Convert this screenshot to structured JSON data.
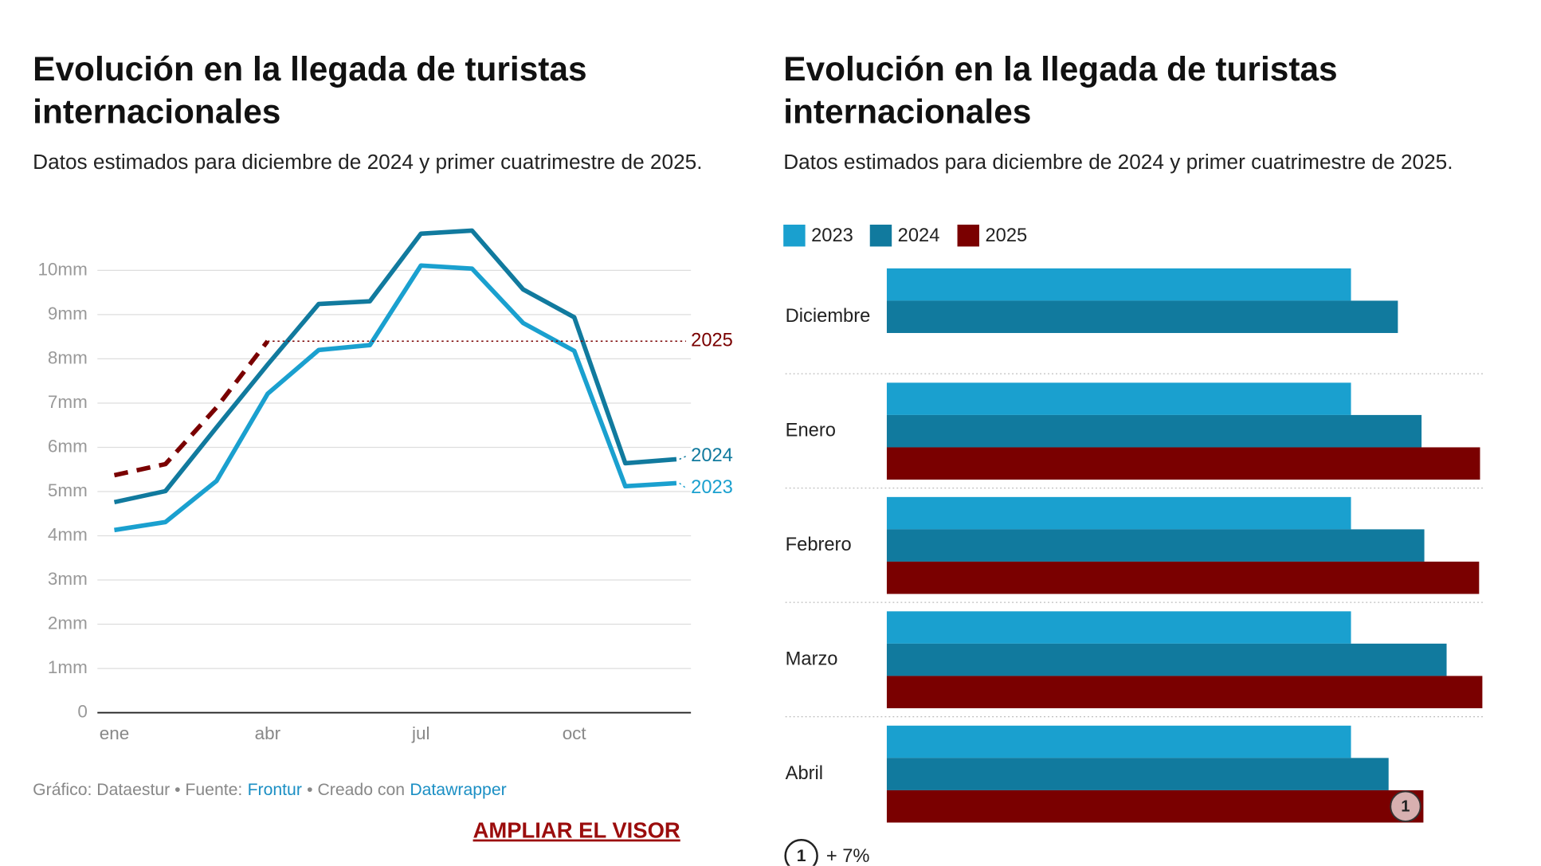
{
  "charts": [
    {
      "type": "line",
      "title": "Evolución en la llegada de turistas internacionales",
      "subtitle": "Datos estimados para diciembre de 2024 y primer cuatrimestre de 2025.",
      "categories": [
        "ene",
        null,
        null,
        "abr",
        null,
        null,
        "jul",
        null,
        null,
        "oct",
        null,
        null
      ],
      "series": [
        {
          "name": "2023",
          "color": "#1aa0cf",
          "values": [
            4.13,
            4.31,
            5.24,
            7.21,
            8.2,
            8.31,
            10.11,
            10.04,
            8.81,
            8.18,
            5.12,
            5.19
          ]
        },
        {
          "name": "2024",
          "color": "#117a9e",
          "values": [
            4.76,
            5.01,
            6.45,
            7.87,
            9.24,
            9.3,
            10.83,
            10.9,
            9.57,
            8.94,
            5.64,
            5.73
          ]
        },
        {
          "name": "2025",
          "color": "#7a0000",
          "dashed": true,
          "values": [
            5.37,
            5.62,
            6.9,
            8.4,
            null,
            null,
            null,
            null,
            null,
            null,
            null,
            null
          ]
        }
      ],
      "ylim": [
        0,
        10
      ],
      "yticks": [
        0,
        {
          "value": 1,
          "label": "1mm"
        },
        {
          "value": 2,
          "label": "2mm"
        },
        {
          "value": 3,
          "label": "3mm"
        },
        {
          "value": 4,
          "label": "4mm"
        },
        {
          "value": 5,
          "label": "5mm"
        },
        {
          "value": 6,
          "label": "6mm"
        },
        {
          "value": 7,
          "label": "7mm"
        },
        {
          "value": 8,
          "label": "8mm"
        },
        {
          "value": 9,
          "label": "9mm"
        },
        {
          "value": 10,
          "label": "10mm"
        }
      ],
      "grid": true,
      "footer": {
        "prefix": "Gráfico: Dataestur • Fuente:",
        "source": "Frontur",
        "middle": "• Creado con",
        "tool": "Datawrapper"
      },
      "button": "AMPLIAR EL VISOR"
    },
    {
      "type": "hbar",
      "title": "Evolución en la llegada de turistas internacionales",
      "subtitle": "Datos estimados para diciembre de 2024 y primer cuatrimestre de 2025.",
      "categories": [
        "Diciembre",
        "Enero",
        "Febrero",
        "Marzo",
        "Abril"
      ],
      "series": [
        {
          "name": "2023",
          "color": "#1aa0cf",
          "values": [
            100,
            100,
            100,
            100,
            100
          ]
        },
        {
          "name": "2024",
          "color": "#117a9e",
          "values": [
            110.1,
            115.2,
            115.8,
            120.6,
            108.1
          ]
        },
        {
          "name": "2025",
          "color": "#7a0000",
          "values": [
            null,
            127.8,
            127.6,
            128.3,
            115.6
          ]
        }
      ],
      "xlim": [
        0,
        128.5
      ],
      "legend": "top-left",
      "annotations": [
        {
          "label": "1",
          "text": "+ 7%"
        }
      ]
    }
  ]
}
